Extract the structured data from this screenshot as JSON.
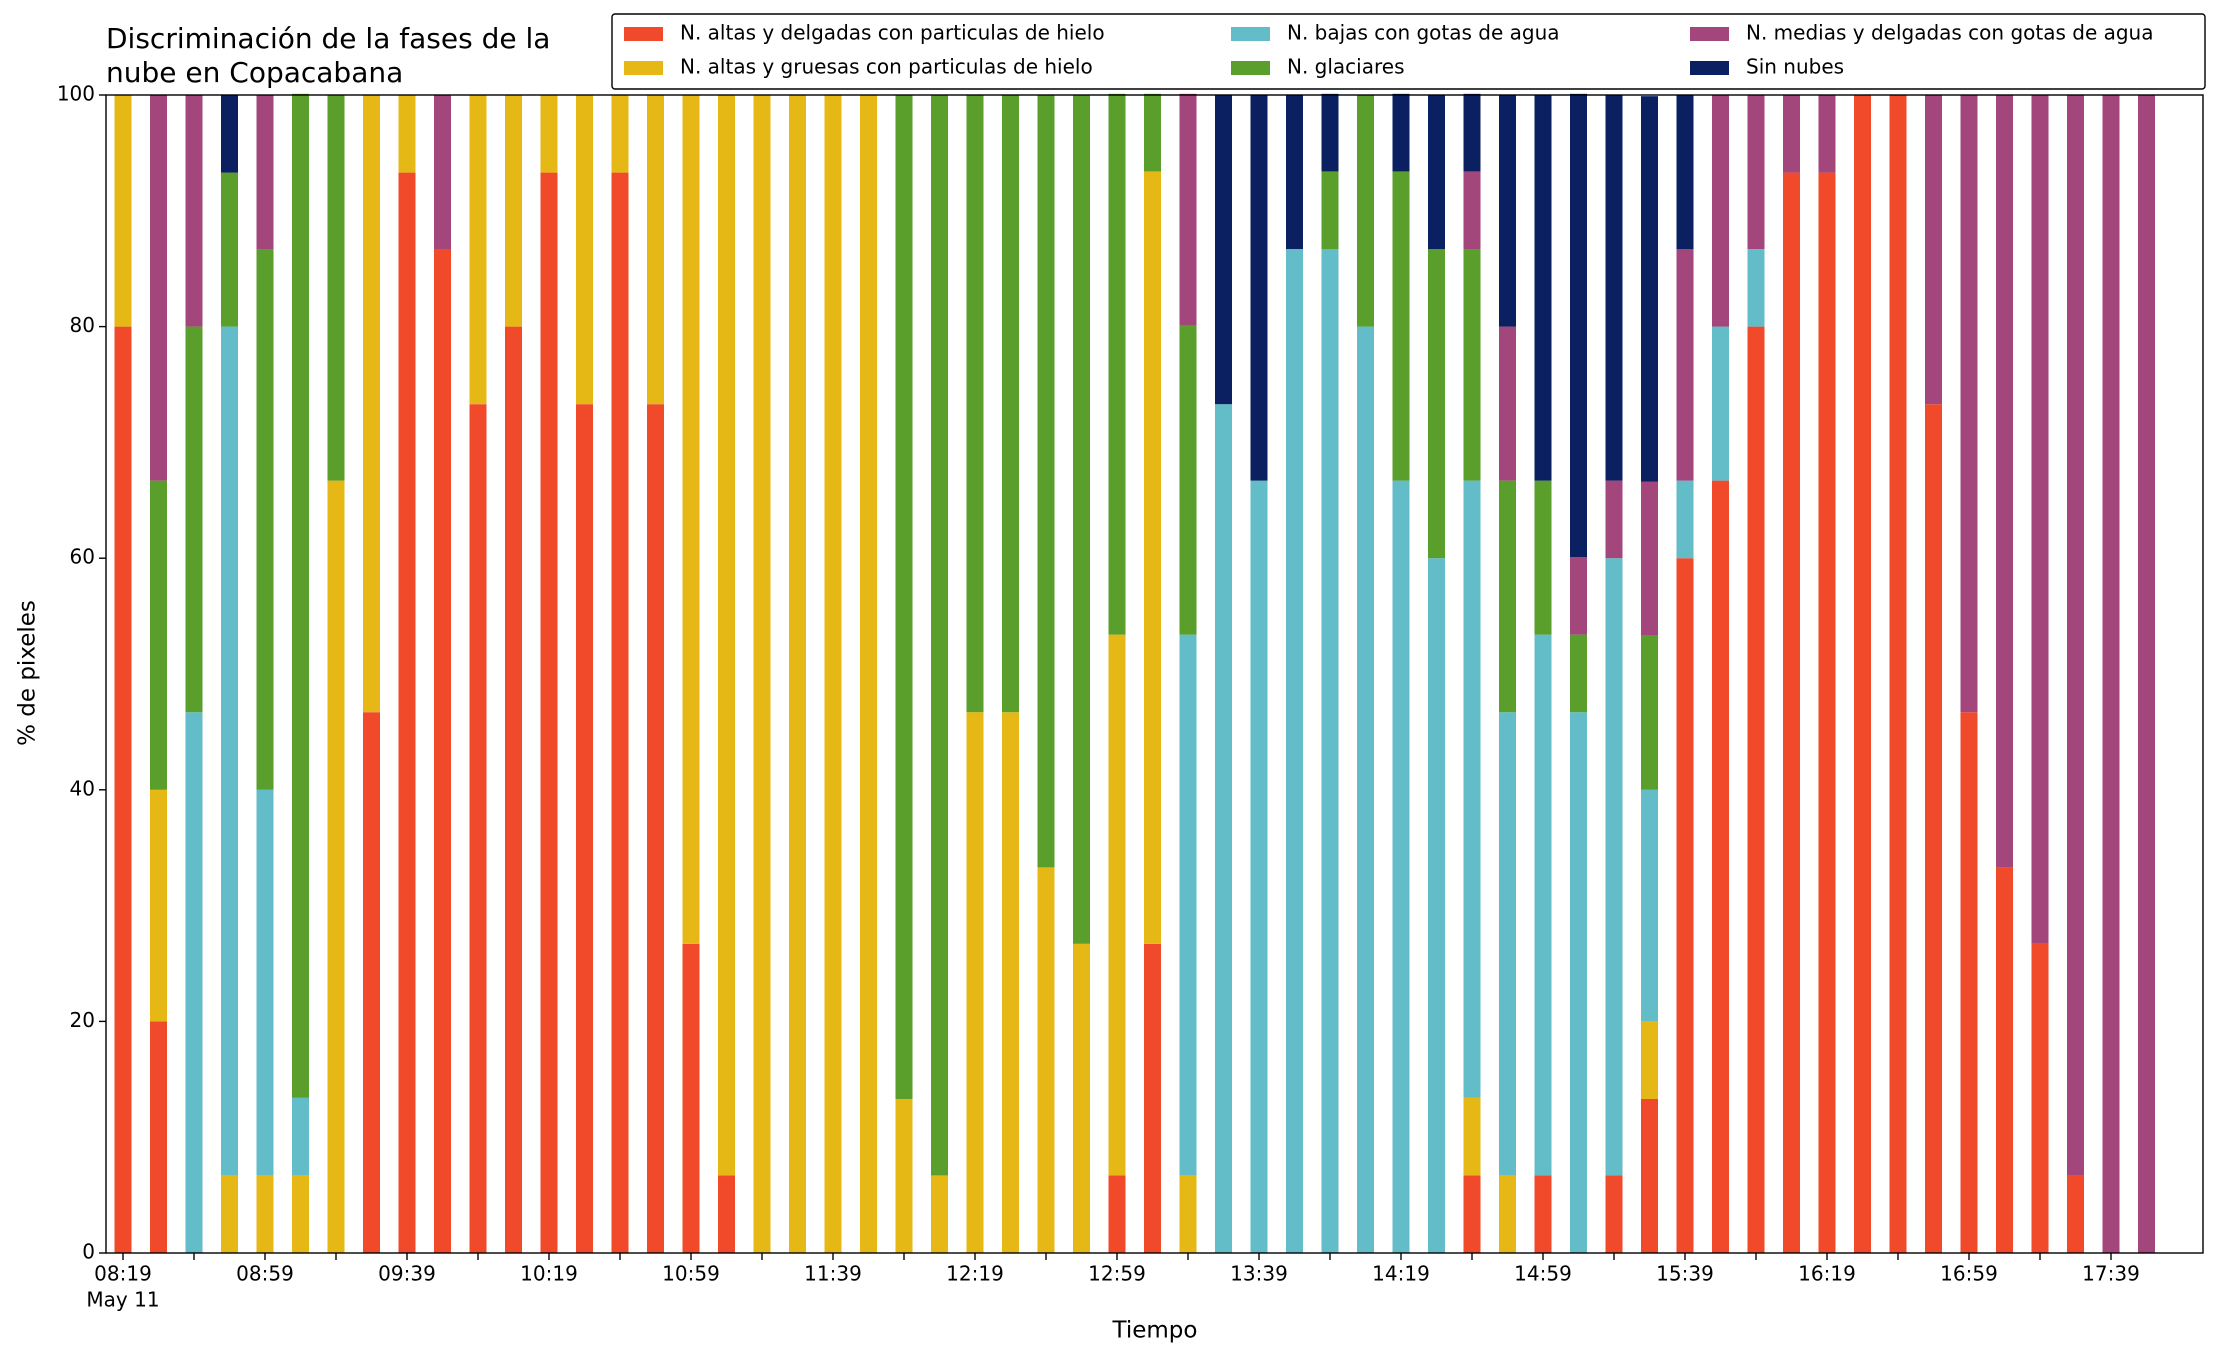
{
  "chart_data": {
    "type": "stacked_bar",
    "title": [
      "Discriminación de la fases de la",
      "nube en Copacabana"
    ],
    "xlabel": "Tiempo",
    "ylabel": "% de pixeles",
    "date_label": "May 11",
    "categories": [
      "08:19",
      null,
      null,
      null,
      "08:59",
      null,
      null,
      null,
      "09:39",
      null,
      null,
      null,
      "10:19",
      null,
      null,
      null,
      "10:59",
      null,
      null,
      null,
      "11:39",
      null,
      null,
      null,
      "12:19",
      null,
      null,
      null,
      "12:59",
      null,
      null,
      null,
      "13:39",
      null,
      null,
      null,
      "14:19",
      null,
      null,
      null,
      "14:59",
      null,
      null,
      null,
      "15:39",
      null,
      null,
      null,
      "16:19",
      null,
      null,
      null,
      "16:59",
      null,
      null,
      null,
      "17:39",
      null
    ],
    "ylim": [
      0,
      100
    ],
    "yticks": [
      0,
      20,
      40,
      60,
      80,
      100
    ],
    "legend": "top-right",
    "series": [
      {
        "name": "N. altas y delgadas con particulas de hielo",
        "color": "#f04a2b",
        "values": [
          80,
          20,
          0,
          0,
          0,
          0,
          0,
          46.7,
          93.3,
          86.7,
          73.3,
          80,
          93.3,
          73.3,
          93.3,
          73.3,
          26.7,
          6.7,
          0,
          0,
          0,
          0,
          0,
          0,
          0,
          0,
          0,
          0,
          6.7,
          26.7,
          0,
          0,
          0,
          0,
          0,
          0,
          0,
          0,
          6.7,
          0,
          6.7,
          0,
          6.7,
          13.3,
          60,
          66.7,
          80,
          93.3,
          93.3,
          100,
          100,
          73.3,
          46.7,
          33.3,
          26.7,
          6.7,
          0,
          0
        ]
      },
      {
        "name": "N. altas y gruesas con particulas de hielo",
        "color": "#e6b815",
        "values": [
          20,
          20,
          0,
          6.7,
          6.7,
          6.7,
          66.7,
          53.3,
          6.7,
          0,
          26.7,
          20,
          6.7,
          26.7,
          6.7,
          26.7,
          73.3,
          93.3,
          100,
          100,
          100,
          100,
          13.3,
          6.7,
          46.7,
          46.7,
          33.3,
          26.7,
          46.7,
          66.7,
          6.7,
          0,
          0,
          0,
          0,
          0,
          0,
          0,
          6.7,
          6.7,
          0,
          0,
          0,
          6.7,
          0,
          0,
          0,
          0,
          0,
          0,
          0,
          0,
          0,
          0,
          0,
          0,
          0,
          0
        ]
      },
      {
        "name": "N. bajas con gotas de agua",
        "color": "#63bdc8",
        "values": [
          0,
          0,
          46.7,
          73.3,
          33.3,
          6.7,
          0,
          0,
          0,
          0,
          0,
          0,
          0,
          0,
          0,
          0,
          0,
          0,
          0,
          0,
          0,
          0,
          0,
          0,
          0,
          0,
          0,
          0,
          0,
          0,
          46.7,
          73.3,
          66.7,
          86.7,
          86.7,
          80,
          66.7,
          60,
          53.3,
          40,
          46.7,
          46.7,
          53.3,
          20,
          6.7,
          13.3,
          6.7,
          0,
          0,
          0,
          0,
          0,
          0,
          0,
          0,
          0,
          0,
          0
        ]
      },
      {
        "name": "N. glaciares",
        "color": "#5a9e2b",
        "values": [
          0,
          26.7,
          33.3,
          13.3,
          46.7,
          86.7,
          33.3,
          0,
          0,
          0,
          0,
          0,
          0,
          0,
          0,
          0,
          0,
          0,
          0,
          0,
          0,
          0,
          86.7,
          93.3,
          53.3,
          53.3,
          66.7,
          73.3,
          46.7,
          6.7,
          26.7,
          0,
          0,
          0,
          6.7,
          20,
          26.7,
          26.7,
          20,
          20,
          13.3,
          6.7,
          0,
          13.3,
          0,
          0,
          0,
          0,
          0,
          0,
          0,
          0,
          0,
          0,
          0,
          0,
          0,
          0
        ]
      },
      {
        "name": "N. medias y delgadas con gotas de agua",
        "color": "#a3467c",
        "values": [
          0,
          33.3,
          20,
          0,
          13.3,
          0,
          0,
          0,
          0,
          13.3,
          0,
          0,
          0,
          0,
          0,
          0,
          0,
          0,
          0,
          0,
          0,
          0,
          0,
          0,
          0,
          0,
          0,
          0,
          0,
          0,
          20,
          0,
          0,
          0,
          0,
          0,
          0,
          0,
          6.7,
          13.3,
          0,
          6.7,
          6.7,
          13.3,
          20,
          20,
          13.3,
          6.7,
          6.7,
          0,
          0,
          26.7,
          53.3,
          66.7,
          73.3,
          93.3,
          100,
          100
        ]
      },
      {
        "name": "Sin nubes",
        "color": "#0a2060",
        "values": [
          0,
          0,
          0,
          6.7,
          0,
          0,
          0,
          0,
          0,
          0,
          0,
          0,
          0,
          0,
          0,
          0,
          0,
          0,
          0,
          0,
          0,
          0,
          0,
          0,
          0,
          0,
          0,
          0,
          0,
          0,
          0,
          26.7,
          33.3,
          13.3,
          6.7,
          0,
          6.7,
          13.3,
          6.7,
          20,
          33.3,
          40,
          33.3,
          33.3,
          13.3,
          0,
          0,
          0,
          0,
          0,
          0,
          0,
          0,
          0,
          0,
          0,
          0,
          0
        ]
      }
    ]
  }
}
